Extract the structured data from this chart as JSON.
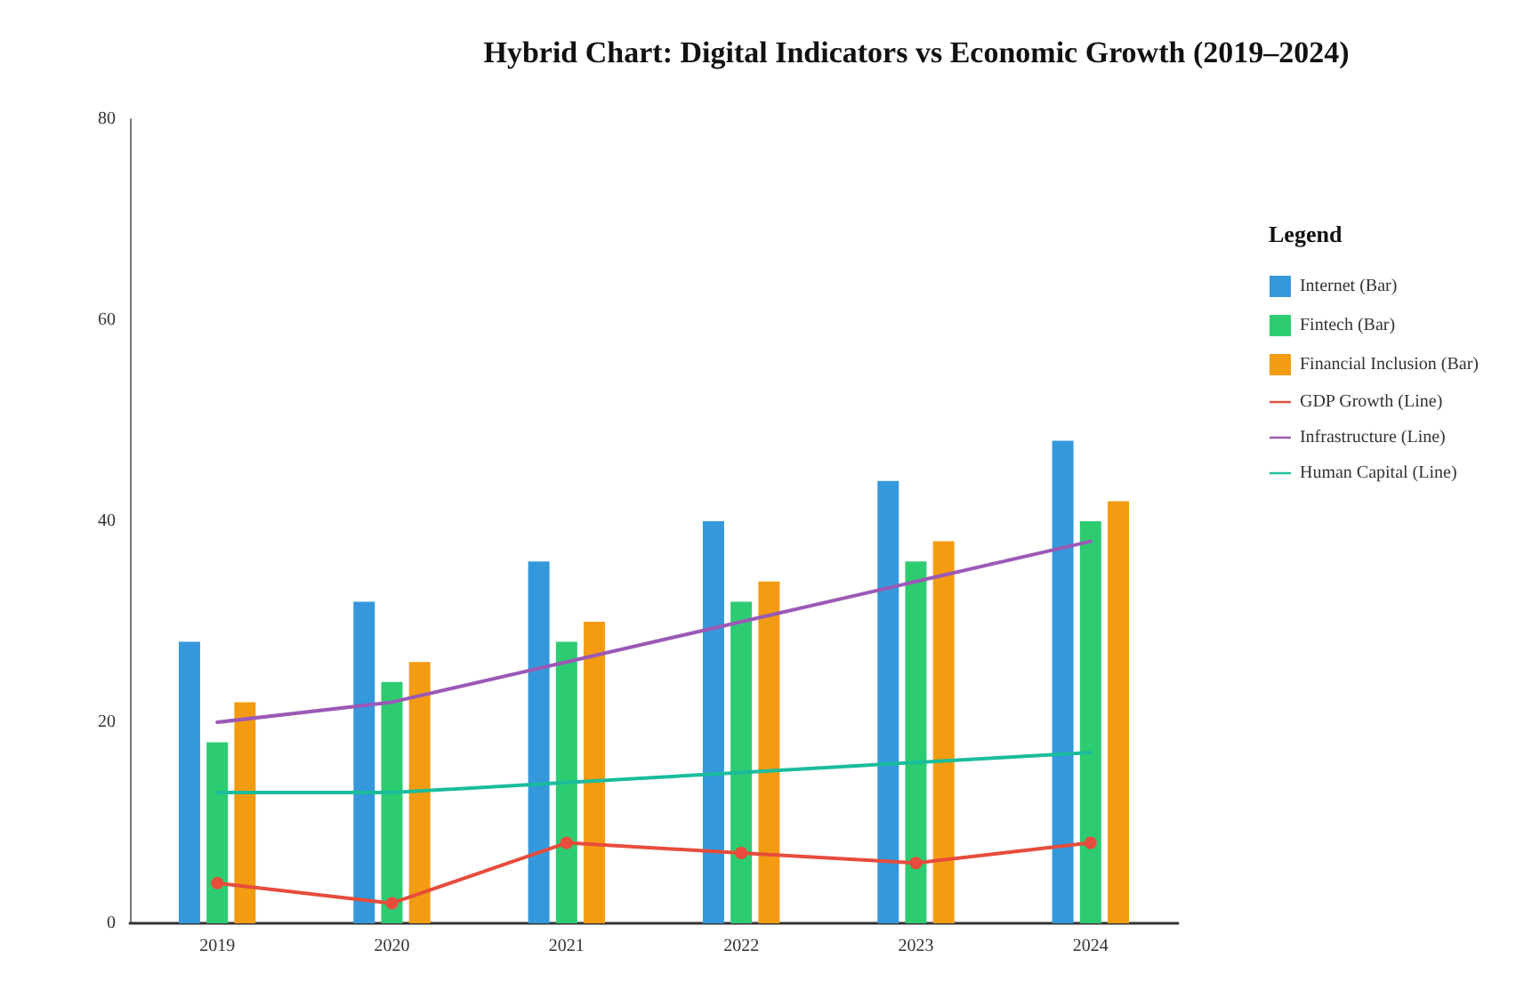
{
  "chart_data": {
    "type": "bar",
    "title": "Hybrid Chart: Digital Indicators vs Economic Growth (2019–2024)",
    "legend_title": "Legend",
    "categories": [
      "2019",
      "2020",
      "2021",
      "2022",
      "2023",
      "2024"
    ],
    "series": [
      {
        "name": "Internet (Bar)",
        "color": "#3498db",
        "values": [
          28,
          32,
          36,
          40,
          44,
          48
        ]
      },
      {
        "name": "Fintech (Bar)",
        "color": "#2ecc71",
        "values": [
          18,
          24,
          28,
          32,
          36,
          40
        ]
      },
      {
        "name": "Financial Inclusion (Bar)",
        "color": "#f39c12",
        "values": [
          22,
          26,
          30,
          34,
          38,
          42
        ]
      },
      {
        "name": "GDP Growth (Line)",
        "type": "line",
        "color": "#e74c3c",
        "marker": "circle",
        "values": [
          4,
          2,
          8,
          7,
          6,
          8
        ]
      },
      {
        "name": "Infrastructure (Line)",
        "type": "line",
        "color": "#9b59b6",
        "values": [
          20,
          22,
          26,
          30,
          34,
          38
        ]
      },
      {
        "name": "Human Capital (Line)",
        "type": "line",
        "color": "#1abc9c",
        "values": [
          13,
          13,
          14,
          15,
          16,
          17
        ]
      }
    ],
    "ylim": [
      0,
      80
    ],
    "yticks": [
      0,
      20,
      40,
      60,
      80
    ],
    "grid": false,
    "legend": "right",
    "line_style": "solid"
  }
}
